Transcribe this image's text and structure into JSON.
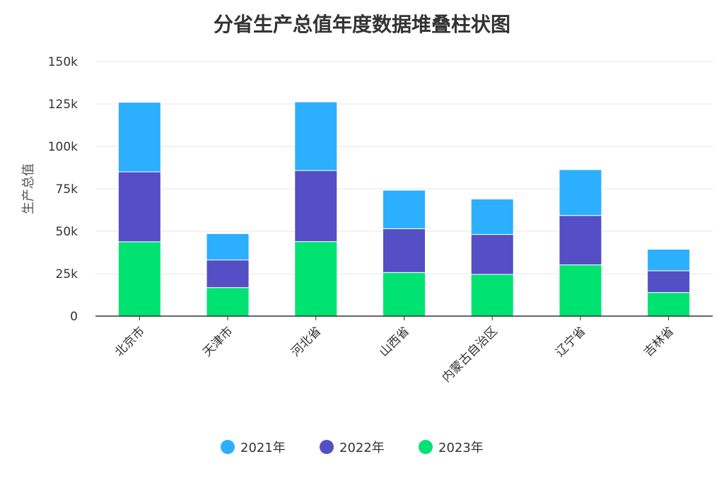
{
  "chart_data": {
    "type": "bar",
    "stacked": true,
    "title": "分省生产总值年度数据堆叠柱状图",
    "xlabel": "",
    "ylabel": "生产总值",
    "ylim": [
      0,
      150000
    ],
    "yticks": [
      0,
      25000,
      50000,
      75000,
      100000,
      125000,
      150000
    ],
    "ytick_labels": [
      "0",
      "25k",
      "50k",
      "75k",
      "100k",
      "125k",
      "150k"
    ],
    "categories": [
      "北京市",
      "天津市",
      "河北省",
      "山西省",
      "内蒙古自治区",
      "辽宁省",
      "吉林省"
    ],
    "series": [
      {
        "name": "2023年",
        "color": "#00E272",
        "values": [
          43800,
          16800,
          43900,
          25700,
          24600,
          30200,
          13900
        ]
      },
      {
        "name": "2022年",
        "color": "#544FC5",
        "values": [
          41200,
          16300,
          41900,
          25800,
          23500,
          29100,
          12800
        ]
      },
      {
        "name": "2021年",
        "color": "#2CAFFE",
        "values": [
          41000,
          15500,
          40400,
          22700,
          20900,
          27000,
          12700
        ]
      }
    ],
    "legend_order": [
      "2021年",
      "2022年",
      "2023年"
    ],
    "legend_position": "bottom",
    "grid": true
  }
}
